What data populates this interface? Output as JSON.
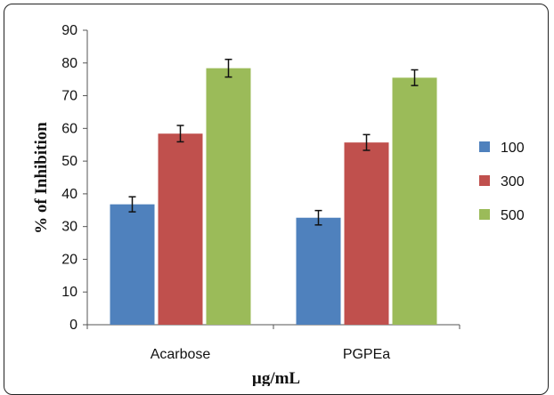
{
  "chart_data": {
    "type": "bar",
    "categories": [
      "Acarbose",
      "PGPEa"
    ],
    "series": [
      {
        "name": "100",
        "values": [
          36.8,
          32.7
        ],
        "errors": [
          2.3,
          2.2
        ],
        "color": "#4f81bd"
      },
      {
        "name": "300",
        "values": [
          58.4,
          55.7
        ],
        "errors": [
          2.5,
          2.4
        ],
        "color": "#c0504d"
      },
      {
        "name": "500",
        "values": [
          78.4,
          75.5
        ],
        "errors": [
          2.7,
          2.4
        ],
        "color": "#9bbb59"
      }
    ],
    "xlabel": "µg/mL",
    "ylabel": "% of Inhibition",
    "ylim": [
      0,
      90
    ],
    "yticks": [
      "0",
      "10",
      "20",
      "30",
      "40",
      "50",
      "60",
      "70",
      "80",
      "90"
    ],
    "grid": false,
    "legend_position": "right"
  }
}
